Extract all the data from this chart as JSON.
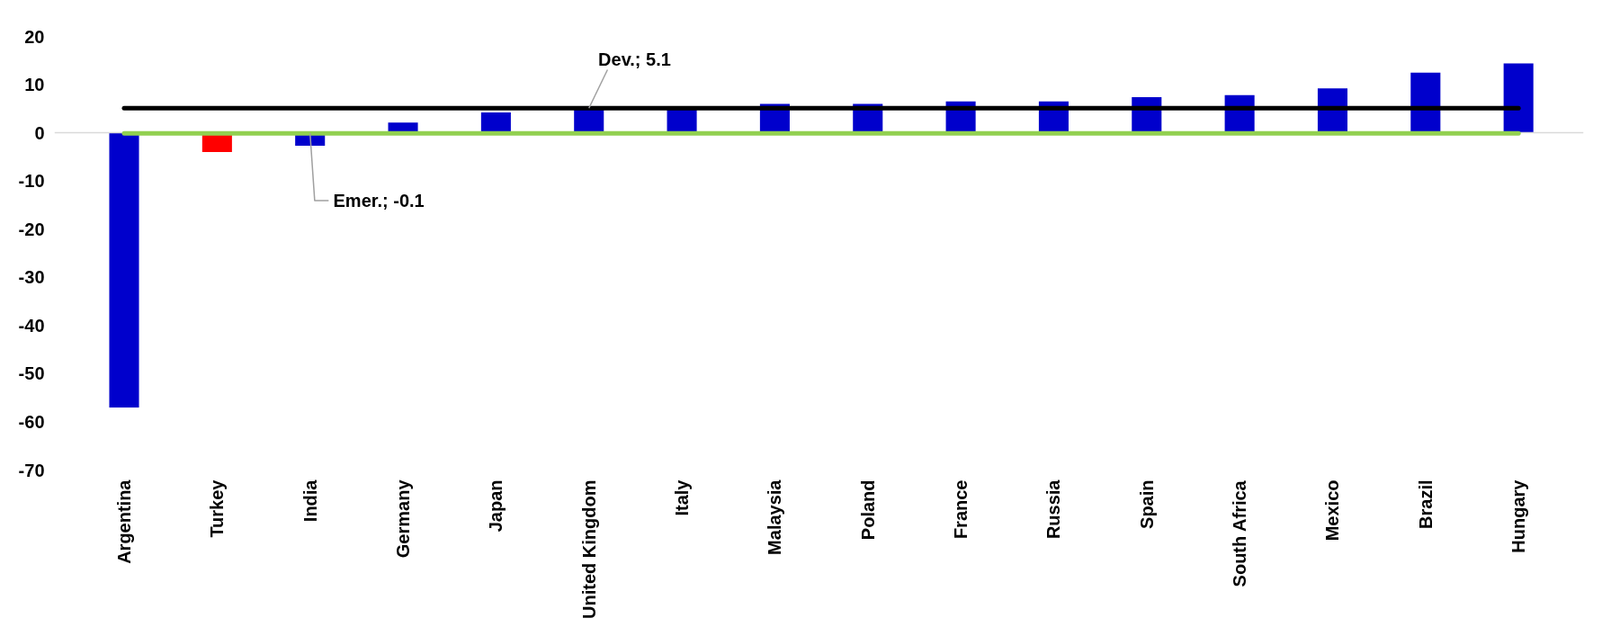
{
  "chart_data": {
    "type": "bar",
    "categories": [
      "Argentina",
      "Turkey",
      "India",
      "Germany",
      "Japan",
      "United Kingdom",
      "Italy",
      "Malaysia",
      "Poland",
      "France",
      "Russia",
      "Spain",
      "South Africa",
      "Mexico",
      "Brazil",
      "Hungary"
    ],
    "values": [
      -57,
      -4,
      -2.7,
      2.1,
      4.2,
      5,
      5,
      6,
      6,
      6.5,
      6.5,
      7.4,
      7.8,
      9.2,
      12.5,
      14.4
    ],
    "colors": [
      "#0000cc",
      "#ff0000",
      "#0000cc",
      "#0000cc",
      "#0000cc",
      "#0000cc",
      "#0000cc",
      "#0000cc",
      "#0000cc",
      "#0000cc",
      "#0000cc",
      "#0000cc",
      "#0000cc",
      "#0000cc",
      "#0000cc",
      "#0000cc"
    ],
    "ylim": [
      -70,
      20
    ],
    "yticks": [
      -70,
      -60,
      -50,
      -40,
      -30,
      -20,
      -10,
      0,
      10,
      20
    ],
    "grid": false,
    "ref_lines": [
      {
        "axis": "y",
        "value": 5.1,
        "label": "Dev.; 5.1",
        "color": "#000000"
      },
      {
        "axis": "y",
        "value": -0.1,
        "label": "Emer.; -0.1",
        "color": "#92d050"
      }
    ]
  }
}
